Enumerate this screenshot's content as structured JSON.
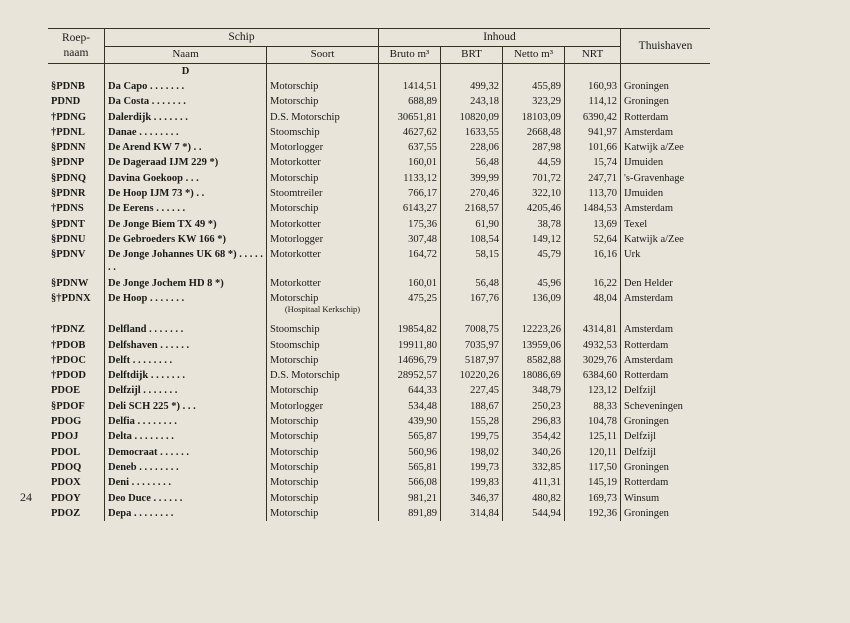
{
  "page_number": "24",
  "header": {
    "col_roep": "Roep-\nnaam",
    "col_schip": "Schip",
    "col_naam": "Naam",
    "col_soort": "Soort",
    "col_inhoud": "Inhoud",
    "col_bruto": "Bruto m³",
    "col_brt": "BRT",
    "col_netto": "Netto m³",
    "col_nrt": "NRT",
    "col_thuis": "Thuishaven"
  },
  "section_letter": "D",
  "hospitaal_note": "(Hospitaal Kerkschip)",
  "rows": [
    {
      "code": "§PDNB",
      "naam": "Da Capo . . . . . . .",
      "soort": "Motorschip",
      "bruto": "1414,51",
      "brt": "499,32",
      "netto": "455,89",
      "nrt": "160,93",
      "thuis": "Groningen"
    },
    {
      "code": "PDND",
      "naam": "Da Costa . . . . . . .",
      "soort": "Motorschip",
      "bruto": "688,89",
      "brt": "243,18",
      "netto": "323,29",
      "nrt": "114,12",
      "thuis": "Groningen"
    },
    {
      "code": "†PDNG",
      "naam": "Dalerdijk . . . . . . .",
      "soort": "D.S. Motorschip",
      "bruto": "30651,81",
      "brt": "10820,09",
      "netto": "18103,09",
      "nrt": "6390,42",
      "thuis": "Rotterdam"
    },
    {
      "code": "†PDNL",
      "naam": "Danae . . . . . . . .",
      "soort": "Stoomschip",
      "bruto": "4627,62",
      "brt": "1633,55",
      "netto": "2668,48",
      "nrt": "941,97",
      "thuis": "Amsterdam"
    },
    {
      "code": "§PDNN",
      "naam": "De Arend KW 7 *) . .",
      "soort": "Motorlogger",
      "bruto": "637,55",
      "brt": "228,06",
      "netto": "287,98",
      "nrt": "101,66",
      "thuis": "Katwijk a/Zee"
    },
    {
      "code": "§PDNP",
      "naam": "De Dageraad IJM 229 *)",
      "soort": "Motorkotter",
      "bruto": "160,01",
      "brt": "56,48",
      "netto": "44,59",
      "nrt": "15,74",
      "thuis": "IJmuiden"
    },
    {
      "code": "§PDNQ",
      "naam": "Davina Goekoop . . .",
      "soort": "Motorschip",
      "bruto": "1133,12",
      "brt": "399,99",
      "netto": "701,72",
      "nrt": "247,71",
      "thuis": "'s-Gravenhage"
    },
    {
      "code": "§PDNR",
      "naam": "De Hoop IJM 73 *) . .",
      "soort": "Stoomtreiler",
      "bruto": "766,17",
      "brt": "270,46",
      "netto": "322,10",
      "nrt": "113,70",
      "thuis": "IJmuiden"
    },
    {
      "code": "†PDNS",
      "naam": "De Eerens . . . . . .",
      "soort": "Motorschip",
      "bruto": "6143,27",
      "brt": "2168,57",
      "netto": "4205,46",
      "nrt": "1484,53",
      "thuis": "Amsterdam"
    },
    {
      "code": "§PDNT",
      "naam": "De Jonge Biem TX 49 *)",
      "soort": "Motorkotter",
      "bruto": "175,36",
      "brt": "61,90",
      "netto": "38,78",
      "nrt": "13,69",
      "thuis": "Texel"
    },
    {
      "code": "§PDNU",
      "naam": "De Gebroeders KW 166 *)",
      "soort": "Motorlogger",
      "bruto": "307,48",
      "brt": "108,54",
      "netto": "149,12",
      "nrt": "52,64",
      "thuis": "Katwijk a/Zee"
    },
    {
      "code": "§PDNV",
      "naam": "De Jonge Johannes UK 68 *) . . . . . . .",
      "soort": "Motorkotter",
      "bruto": "164,72",
      "brt": "58,15",
      "netto": "45,79",
      "nrt": "16,16",
      "thuis": "Urk"
    },
    {
      "code": "§PDNW",
      "naam": "De Jonge Jochem HD 8 *)",
      "soort": "Motorkotter",
      "bruto": "160,01",
      "brt": "56,48",
      "netto": "45,96",
      "nrt": "16,22",
      "thuis": "Den Helder"
    },
    {
      "code": "§†PDNX",
      "naam": "De Hoop . . . . . . .",
      "soort": "Motorschip",
      "bruto": "475,25",
      "brt": "167,76",
      "netto": "136,09",
      "nrt": "48,04",
      "thuis": "Amsterdam"
    },
    {
      "code": "†PDNZ",
      "naam": "Delfland . . . . . . .",
      "soort": "Stoomschip",
      "bruto": "19854,82",
      "brt": "7008,75",
      "netto": "12223,26",
      "nrt": "4314,81",
      "thuis": "Amsterdam"
    },
    {
      "code": "†PDOB",
      "naam": "Delfshaven . . . . . .",
      "soort": "Stoomschip",
      "bruto": "19911,80",
      "brt": "7035,97",
      "netto": "13959,06",
      "nrt": "4932,53",
      "thuis": "Rotterdam"
    },
    {
      "code": "†PDOC",
      "naam": "Delft . . . . . . . .",
      "soort": "Motorschip",
      "bruto": "14696,79",
      "brt": "5187,97",
      "netto": "8582,88",
      "nrt": "3029,76",
      "thuis": "Amsterdam"
    },
    {
      "code": "†PDOD",
      "naam": "Delftdijk . . . . . . .",
      "soort": "D.S. Motorschip",
      "bruto": "28952,57",
      "brt": "10220,26",
      "netto": "18086,69",
      "nrt": "6384,60",
      "thuis": "Rotterdam"
    },
    {
      "code": "PDOE",
      "naam": "Delfzijl . . . . . . .",
      "soort": "Motorschip",
      "bruto": "644,33",
      "brt": "227,45",
      "netto": "348,79",
      "nrt": "123,12",
      "thuis": "Delfzijl"
    },
    {
      "code": "§PDOF",
      "naam": "Deli SCH 225 *) . . .",
      "soort": "Motorlogger",
      "bruto": "534,48",
      "brt": "188,67",
      "netto": "250,23",
      "nrt": "88,33",
      "thuis": "Scheveningen"
    },
    {
      "code": "PDOG",
      "naam": "Delfia . . . . . . . .",
      "soort": "Motorschip",
      "bruto": "439,90",
      "brt": "155,28",
      "netto": "296,83",
      "nrt": "104,78",
      "thuis": "Groningen"
    },
    {
      "code": "PDOJ",
      "naam": "Delta . . . . . . . .",
      "soort": "Motorschip",
      "bruto": "565,87",
      "brt": "199,75",
      "netto": "354,42",
      "nrt": "125,11",
      "thuis": "Delfzijl"
    },
    {
      "code": "PDOL",
      "naam": "Democraat . . . . . .",
      "soort": "Motorschip",
      "bruto": "560,96",
      "brt": "198,02",
      "netto": "340,26",
      "nrt": "120,11",
      "thuis": "Delfzijl"
    },
    {
      "code": "PDOQ",
      "naam": "Deneb . . . . . . . .",
      "soort": "Motorschip",
      "bruto": "565,81",
      "brt": "199,73",
      "netto": "332,85",
      "nrt": "117,50",
      "thuis": "Groningen"
    },
    {
      "code": "PDOX",
      "naam": "Deni . . . . . . . .",
      "soort": "Motorschip",
      "bruto": "566,08",
      "brt": "199,83",
      "netto": "411,31",
      "nrt": "145,19",
      "thuis": "Rotterdam"
    },
    {
      "code": "PDOY",
      "naam": "Deo Duce . . . . . .",
      "soort": "Motorschip",
      "bruto": "981,21",
      "brt": "346,37",
      "netto": "480,82",
      "nrt": "169,73",
      "thuis": "Winsum"
    },
    {
      "code": "PDOZ",
      "naam": "Depa . . . . . . . .",
      "soort": "Motorschip",
      "bruto": "891,89",
      "brt": "314,84",
      "netto": "544,94",
      "nrt": "192,36",
      "thuis": "Groningen"
    }
  ]
}
